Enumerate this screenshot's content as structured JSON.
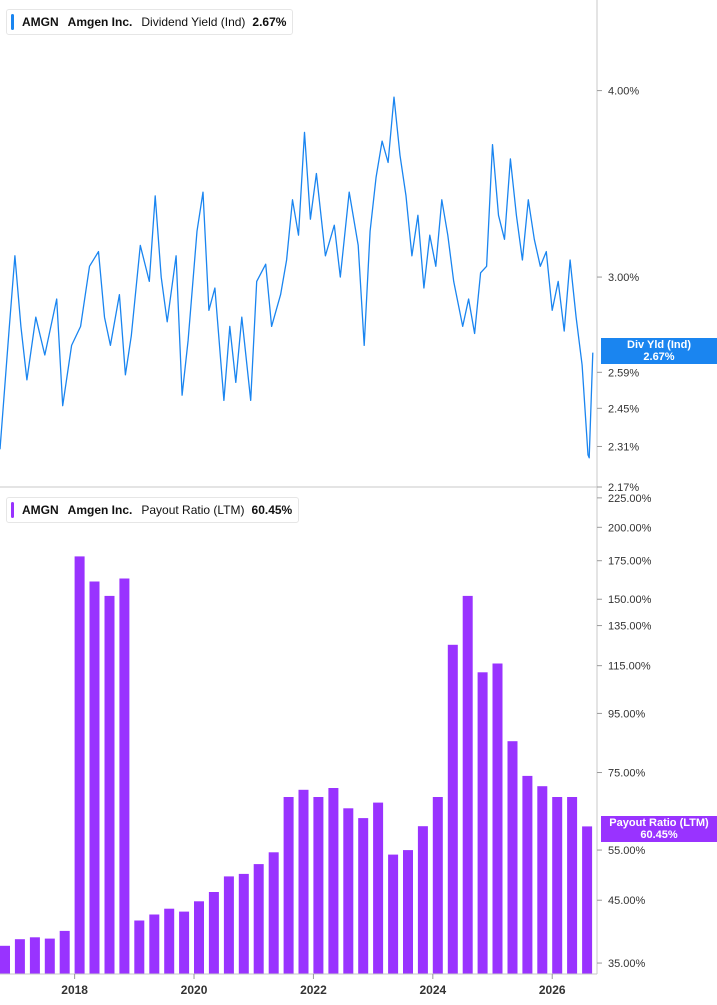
{
  "panels": {
    "top": {
      "ticker": "AMGN",
      "company": "Amgen Inc.",
      "metric": "Dividend Yield (Ind)",
      "value": "2.67%",
      "color": "#1a85f0",
      "tag_title": "Div Yld (Ind)",
      "tag_value": "2.67%"
    },
    "bottom": {
      "ticker": "AMGN",
      "company": "Amgen Inc.",
      "metric": "Payout Ratio (LTM)",
      "value": "60.45%",
      "color": "#9933ff",
      "tag_title": "Payout Ratio (LTM)",
      "tag_value": "60.45%"
    }
  },
  "x_ticks": [
    "2018",
    "2020",
    "2022",
    "2024",
    "2026"
  ],
  "chart_data": [
    {
      "type": "line",
      "y_scale": "log",
      "ylim": [
        2.17,
        4.6
      ],
      "x_range": [
        2016.75,
        2026.75
      ],
      "y_ticks": [
        "4.00%",
        "3.00%",
        "2.59%",
        "2.45%",
        "2.31%",
        "2.17%"
      ],
      "y_tick_values": [
        4.0,
        3.0,
        2.59,
        2.45,
        2.31,
        2.17
      ],
      "series": [
        {
          "name": "Dividend Yield (Ind)",
          "points": [
            [
              2016.75,
              2.3
            ],
            [
              2016.9,
              2.76
            ],
            [
              2017.0,
              3.1
            ],
            [
              2017.1,
              2.78
            ],
            [
              2017.2,
              2.56
            ],
            [
              2017.35,
              2.82
            ],
            [
              2017.5,
              2.66
            ],
            [
              2017.7,
              2.9
            ],
            [
              2017.8,
              2.46
            ],
            [
              2017.95,
              2.7
            ],
            [
              2018.1,
              2.78
            ],
            [
              2018.25,
              3.05
            ],
            [
              2018.4,
              3.12
            ],
            [
              2018.5,
              2.82
            ],
            [
              2018.6,
              2.7
            ],
            [
              2018.75,
              2.92
            ],
            [
              2018.85,
              2.58
            ],
            [
              2018.95,
              2.74
            ],
            [
              2019.1,
              3.15
            ],
            [
              2019.25,
              2.98
            ],
            [
              2019.35,
              3.4
            ],
            [
              2019.45,
              3.0
            ],
            [
              2019.55,
              2.8
            ],
            [
              2019.7,
              3.1
            ],
            [
              2019.8,
              2.5
            ],
            [
              2019.9,
              2.72
            ],
            [
              2020.05,
              3.22
            ],
            [
              2020.15,
              3.42
            ],
            [
              2020.25,
              2.85
            ],
            [
              2020.35,
              2.95
            ],
            [
              2020.5,
              2.48
            ],
            [
              2020.6,
              2.78
            ],
            [
              2020.7,
              2.55
            ],
            [
              2020.8,
              2.82
            ],
            [
              2020.95,
              2.48
            ],
            [
              2021.05,
              2.98
            ],
            [
              2021.2,
              3.06
            ],
            [
              2021.3,
              2.78
            ],
            [
              2021.45,
              2.92
            ],
            [
              2021.55,
              3.08
            ],
            [
              2021.65,
              3.38
            ],
            [
              2021.75,
              3.2
            ],
            [
              2021.85,
              3.75
            ],
            [
              2021.95,
              3.28
            ],
            [
              2022.05,
              3.52
            ],
            [
              2022.2,
              3.1
            ],
            [
              2022.35,
              3.25
            ],
            [
              2022.45,
              3.0
            ],
            [
              2022.6,
              3.42
            ],
            [
              2022.75,
              3.15
            ],
            [
              2022.85,
              2.7
            ],
            [
              2022.95,
              3.22
            ],
            [
              2023.05,
              3.5
            ],
            [
              2023.15,
              3.7
            ],
            [
              2023.25,
              3.58
            ],
            [
              2023.35,
              3.96
            ],
            [
              2023.45,
              3.62
            ],
            [
              2023.55,
              3.4
            ],
            [
              2023.65,
              3.1
            ],
            [
              2023.75,
              3.3
            ],
            [
              2023.85,
              2.95
            ],
            [
              2023.95,
              3.2
            ],
            [
              2024.05,
              3.05
            ],
            [
              2024.15,
              3.38
            ],
            [
              2024.25,
              3.2
            ],
            [
              2024.35,
              2.98
            ],
            [
              2024.5,
              2.78
            ],
            [
              2024.6,
              2.9
            ],
            [
              2024.7,
              2.75
            ],
            [
              2024.8,
              3.02
            ],
            [
              2024.9,
              3.05
            ],
            [
              2025.0,
              3.68
            ],
            [
              2025.1,
              3.3
            ],
            [
              2025.2,
              3.18
            ],
            [
              2025.3,
              3.6
            ],
            [
              2025.4,
              3.3
            ],
            [
              2025.5,
              3.08
            ],
            [
              2025.6,
              3.38
            ],
            [
              2025.7,
              3.18
            ],
            [
              2025.8,
              3.05
            ],
            [
              2025.9,
              3.12
            ],
            [
              2026.0,
              2.85
            ],
            [
              2026.1,
              2.98
            ],
            [
              2026.2,
              2.76
            ],
            [
              2026.3,
              3.08
            ],
            [
              2026.4,
              2.82
            ],
            [
              2026.5,
              2.62
            ],
            [
              2026.6,
              2.28
            ],
            [
              2026.62,
              2.27
            ],
            [
              2026.68,
              2.67
            ]
          ]
        }
      ]
    },
    {
      "type": "bar",
      "y_scale": "log",
      "ylim": [
        33.5,
        235
      ],
      "x_range": [
        2016.75,
        2026.75
      ],
      "y_ticks": [
        "225.00%",
        "200.00%",
        "175.00%",
        "150.00%",
        "135.00%",
        "115.00%",
        "95.00%",
        "75.00%",
        "55.00%",
        "45.00%",
        "35.00%"
      ],
      "y_tick_values": [
        225,
        200,
        175,
        150,
        135,
        115,
        95,
        75,
        55,
        45,
        35
      ],
      "series": [
        {
          "name": "Payout Ratio (LTM)",
          "x": [
            2016.75,
            2017.0,
            2017.25,
            2017.5,
            2017.75,
            2018.0,
            2018.25,
            2018.5,
            2018.75,
            2019.0,
            2019.25,
            2019.5,
            2019.75,
            2020.0,
            2020.25,
            2020.5,
            2020.75,
            2021.0,
            2021.25,
            2021.5,
            2021.75,
            2022.0,
            2022.25,
            2022.5,
            2022.75,
            2023.0,
            2023.25,
            2023.5,
            2023.75,
            2024.0,
            2024.25,
            2024.5,
            2024.75,
            2025.0,
            2025.25,
            2025.5,
            2025.75,
            2026.0,
            2026.25,
            2026.5
          ],
          "values": [
            37.5,
            38.5,
            38.8,
            38.6,
            39.8,
            178.0,
            161.0,
            152.0,
            163.0,
            41.5,
            42.5,
            43.5,
            43.0,
            44.8,
            46.5,
            49.5,
            50.0,
            52.0,
            54.5,
            68.0,
            70.0,
            68.0,
            70.5,
            65.0,
            62.5,
            66.5,
            54.0,
            55.0,
            60.5,
            68.0,
            125.0,
            152.0,
            112.0,
            116.0,
            85.0,
            74.0,
            71.0,
            68.0,
            68.0,
            60.45
          ]
        }
      ]
    }
  ]
}
